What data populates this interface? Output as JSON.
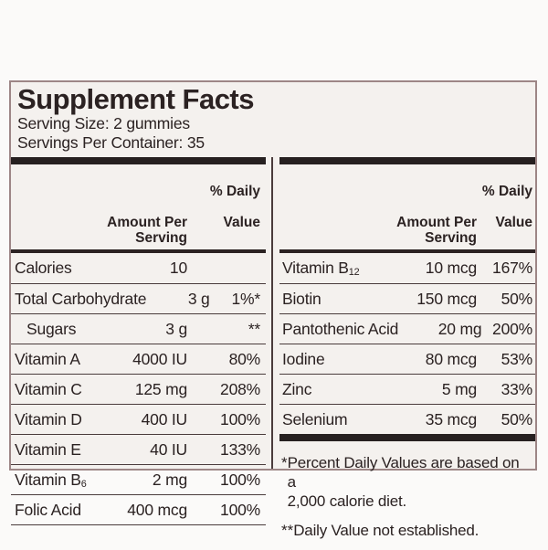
{
  "title": "Supplement Facts",
  "serving_size": "Serving Size: 2 gummies",
  "servings_per_container": "Servings Per Container: 35",
  "column_header": {
    "amount_line1": "Amount Per",
    "amount_line2": "Serving",
    "dv_line1": "% Daily",
    "dv_line2": "Value"
  },
  "columns": {
    "left": {
      "rows": [
        {
          "name": "Calories",
          "amount": "10",
          "dv": ""
        },
        {
          "name": "Total Carbohydrate",
          "amount": "3 g",
          "dv": "1%*"
        },
        {
          "name": "Sugars",
          "indent": true,
          "amount": "3 g",
          "dv": "**"
        },
        {
          "name": "Vitamin A",
          "amount": "4000 IU",
          "dv": "80%"
        },
        {
          "name": "Vitamin C",
          "amount": "125 mg",
          "dv": "208%"
        },
        {
          "name": "Vitamin D",
          "amount": "400 IU",
          "dv": "100%"
        },
        {
          "name": "Vitamin E",
          "amount": "40 IU",
          "dv": "133%"
        },
        {
          "name": "Vitamin B",
          "sub": "6",
          "amount": "2 mg",
          "dv": "100%"
        },
        {
          "name": "Folic Acid",
          "amount": "400 mcg",
          "dv": "100%"
        }
      ]
    },
    "right": {
      "rows": [
        {
          "name": "Vitamin B",
          "sub": "12",
          "amount": "10 mcg",
          "dv": "167%"
        },
        {
          "name": "Biotin",
          "amount": "150 mcg",
          "dv": "50%"
        },
        {
          "name": "Pantothenic Acid",
          "amount": "20 mg",
          "dv": "200%"
        },
        {
          "name": "Iodine",
          "amount": "80 mcg",
          "dv": "53%"
        },
        {
          "name": "Zinc",
          "amount": "5 mg",
          "dv": "33%"
        },
        {
          "name": "Selenium",
          "amount": "35 mcg",
          "dv": "50%"
        }
      ]
    }
  },
  "footnotes": [
    {
      "marker": "*",
      "lines": [
        "Percent Daily Values are based on a",
        "2,000 calorie diet."
      ]
    },
    {
      "marker": "**",
      "lines": [
        "Daily Value not established."
      ]
    }
  ],
  "colors": {
    "ink": "#2b2222",
    "bar": "#262020",
    "line": "#4a3c3c",
    "border": "#9d8686",
    "label_bg": "#f4f1ee"
  }
}
